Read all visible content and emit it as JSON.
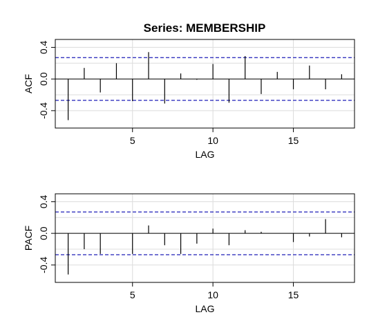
{
  "chart_data": {
    "title": "Series:  MEMBERSHIP",
    "charts": [
      {
        "type": "bar",
        "kind": "ACF",
        "xlabel": "LAG",
        "ylabel": "ACF",
        "xlim": [
          0.2,
          18.8
        ],
        "ylim": [
          -0.62,
          0.5
        ],
        "xticks": [
          "5",
          "10",
          "15"
        ],
        "yticks": [
          "-0.4",
          "0.0",
          "0.4"
        ],
        "grid": true,
        "ci": [
          0.27,
          -0.27
        ],
        "ci_color": "#1f1fb8",
        "bar_color": "#000000",
        "lags": [
          1,
          2,
          3,
          4,
          5,
          6,
          7,
          8,
          9,
          10,
          11,
          12,
          13,
          14,
          15,
          16,
          17,
          18
        ],
        "values": [
          -0.52,
          0.14,
          -0.17,
          0.2,
          -0.28,
          0.34,
          -0.31,
          0.07,
          -0.01,
          0.19,
          -0.3,
          0.29,
          -0.19,
          0.09,
          -0.13,
          0.17,
          -0.13,
          0.06
        ]
      },
      {
        "type": "bar",
        "kind": "PACF",
        "xlabel": "LAG",
        "ylabel": "PACF",
        "xlim": [
          0.2,
          18.8
        ],
        "ylim": [
          -0.62,
          0.5
        ],
        "xticks": [
          "5",
          "10",
          "15"
        ],
        "yticks": [
          "-0.4",
          "0.0",
          "0.4"
        ],
        "grid": true,
        "ci": [
          0.27,
          -0.27
        ],
        "ci_color": "#1f1fb8",
        "bar_color": "#000000",
        "lags": [
          1,
          2,
          3,
          4,
          5,
          6,
          7,
          8,
          9,
          10,
          11,
          12,
          13,
          14,
          15,
          16,
          17,
          18
        ],
        "values": [
          -0.52,
          -0.2,
          -0.26,
          0.0,
          -0.26,
          0.1,
          -0.15,
          -0.26,
          -0.13,
          0.06,
          -0.15,
          0.04,
          0.02,
          0.0,
          -0.11,
          -0.04,
          0.18,
          -0.05
        ]
      }
    ]
  }
}
